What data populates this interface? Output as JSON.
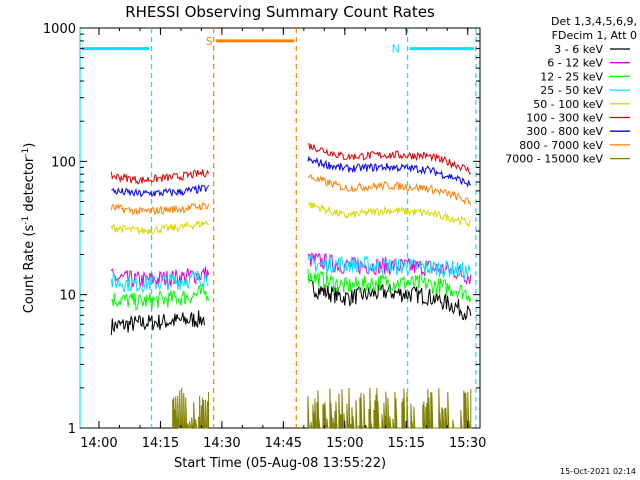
{
  "chart_data": {
    "type": "line",
    "title": "RHESSI Observing Summary Count Rates",
    "xlabel": "Start Time (05-Aug-08 13:55:22)",
    "ylabel_prefix": "Count Rate (s",
    "ylabel_sup1": "-1",
    "ylabel_mid": " detector",
    "ylabel_sup2": "-1",
    "ylabel_suffix": ")",
    "y_scale": "log",
    "ylim": [
      1,
      1000
    ],
    "xlim": [
      "13:55:22",
      "15:33:00"
    ],
    "x_ticks": [
      "14:00",
      "14:15",
      "14:30",
      "14:45",
      "15:00",
      "15:15",
      "15:30"
    ],
    "y_ticks": [
      "1",
      "10",
      "100",
      "1000"
    ],
    "legend_header": [
      "Det 1,3,4,5,6,9,",
      "FDecim 1, Att 0"
    ],
    "legend_position": "right",
    "series": [
      {
        "name": "3 - 6 keV",
        "color": "#000000",
        "segments": [
          [
            [
              "14:03",
              5.8
            ],
            [
              "14:10",
              6.1
            ],
            [
              "14:20",
              6.4
            ],
            [
              "14:26",
              6.6
            ]
          ],
          [
            [
              "14:51",
              11.5
            ],
            [
              "15:00",
              9.5
            ],
            [
              "15:10",
              10.5
            ],
            [
              "15:20",
              9.8
            ],
            [
              "15:27",
              8.2
            ],
            [
              "15:31",
              7.0
            ]
          ]
        ]
      },
      {
        "name": "6 - 12 keV",
        "color": "#e000e0",
        "segments": [
          [
            [
              "14:03",
              13.5
            ],
            [
              "14:10",
              12.8
            ],
            [
              "14:20",
              13.5
            ],
            [
              "14:27",
              14.5
            ]
          ],
          [
            [
              "14:51",
              18.5
            ],
            [
              "15:00",
              16.5
            ],
            [
              "15:10",
              16.5
            ],
            [
              "15:20",
              16.0
            ],
            [
              "15:27",
              15.0
            ],
            [
              "15:31",
              13.5
            ]
          ]
        ]
      },
      {
        "name": "12 - 25 keV",
        "color": "#00ff00",
        "segments": [
          [
            [
              "14:03",
              9.3
            ],
            [
              "14:10",
              8.8
            ],
            [
              "14:20",
              9.5
            ],
            [
              "14:27",
              10.5
            ]
          ],
          [
            [
              "14:51",
              14.0
            ],
            [
              "15:00",
              11.5
            ],
            [
              "15:10",
              12.5
            ],
            [
              "15:20",
              12.0
            ],
            [
              "15:27",
              11.0
            ],
            [
              "15:31",
              10.0
            ]
          ]
        ]
      },
      {
        "name": "25 - 50 keV",
        "color": "#00e5ff",
        "segments": [
          [
            [
              "14:03",
              12.5
            ],
            [
              "14:10",
              12.0
            ],
            [
              "14:20",
              12.7
            ],
            [
              "14:27",
              13.8
            ]
          ],
          [
            [
              "14:51",
              17.0
            ],
            [
              "15:00",
              17.0
            ],
            [
              "15:10",
              16.5
            ],
            [
              "15:20",
              16.0
            ],
            [
              "15:27",
              15.5
            ],
            [
              "15:31",
              14.5
            ]
          ]
        ]
      },
      {
        "name": "50 - 100 keV",
        "color": "#d8d800",
        "segments": [
          [
            [
              "14:03",
              32
            ],
            [
              "14:10",
              30
            ],
            [
              "14:20",
              32
            ],
            [
              "14:27",
              35
            ]
          ],
          [
            [
              "14:51",
              48
            ],
            [
              "15:00",
              39
            ],
            [
              "15:10",
              43
            ],
            [
              "15:20",
              41
            ],
            [
              "15:27",
              37
            ],
            [
              "15:31",
              34
            ]
          ]
        ]
      },
      {
        "name": "100 - 300 keV",
        "color": "#e00000",
        "segments": [
          [
            [
              "14:03",
              78
            ],
            [
              "14:10",
              72
            ],
            [
              "14:20",
              77
            ],
            [
              "14:27",
              83
            ]
          ],
          [
            [
              "14:51",
              132
            ],
            [
              "15:00",
              108
            ],
            [
              "15:10",
              112
            ],
            [
              "15:20",
              110
            ],
            [
              "15:27",
              95
            ],
            [
              "15:31",
              84
            ]
          ]
        ]
      },
      {
        "name": "300 - 800 keV",
        "color": "#0000ff",
        "segments": [
          [
            [
              "14:03",
              60
            ],
            [
              "14:10",
              57
            ],
            [
              "14:20",
              59
            ],
            [
              "14:27",
              63
            ]
          ],
          [
            [
              "14:51",
              102
            ],
            [
              "15:00",
              88
            ],
            [
              "15:10",
              91
            ],
            [
              "15:20",
              87
            ],
            [
              "15:27",
              75
            ],
            [
              "15:31",
              66
            ]
          ]
        ]
      },
      {
        "name": "800 - 7000 keV",
        "color": "#ff8000",
        "segments": [
          [
            [
              "14:03",
              45
            ],
            [
              "14:10",
              42
            ],
            [
              "14:20",
              44
            ],
            [
              "14:27",
              47
            ]
          ],
          [
            [
              "14:51",
              77
            ],
            [
              "15:00",
              63
            ],
            [
              "15:10",
              66
            ],
            [
              "15:20",
              63
            ],
            [
              "15:27",
              55
            ],
            [
              "15:31",
              48
            ]
          ]
        ]
      },
      {
        "name": "7000 - 15000 keV",
        "color": "#808000",
        "segments": [
          [
            [
              "14:18",
              1.0
            ],
            [
              "14:27",
              1.0
            ]
          ],
          [
            [
              "14:51",
              1.0
            ],
            [
              "15:31",
              1.0
            ]
          ]
        ]
      }
    ],
    "annotations": [
      {
        "label": "",
        "kind": "night",
        "color": "#00e5ff",
        "start": "13:55:22",
        "end": "14:12:50",
        "level": 700
      },
      {
        "label": "N",
        "kind": "night",
        "color": "#00e5ff",
        "start": "15:15:20",
        "end": "15:32:00",
        "level": 700
      },
      {
        "label": "S",
        "kind": "saa",
        "color": "#ff8000",
        "start": "14:28:00",
        "end": "14:48:10",
        "level": 800
      }
    ]
  },
  "footer_timestamp": "15-Oct-2021 02:14"
}
